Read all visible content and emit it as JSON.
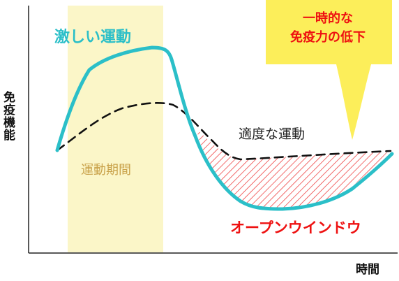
{
  "labels": {
    "y_axis": "免疫機能",
    "x_axis": "時間",
    "intense_exercise": "激しい運動",
    "moderate_exercise": "適度な運動",
    "exercise_period": "運動期間",
    "open_window": "オープンウインドウ",
    "callout_line1": "一時的な",
    "callout_line2": "免疫力の低下"
  },
  "colors": {
    "intense_curve": "#2bbfc8",
    "moderate_curve": "#111111",
    "period_band": "#fbf6c8",
    "callout_fill": "#fcee5a",
    "hatch": "#ee4444",
    "open_window_text": "#ee1111"
  }
}
